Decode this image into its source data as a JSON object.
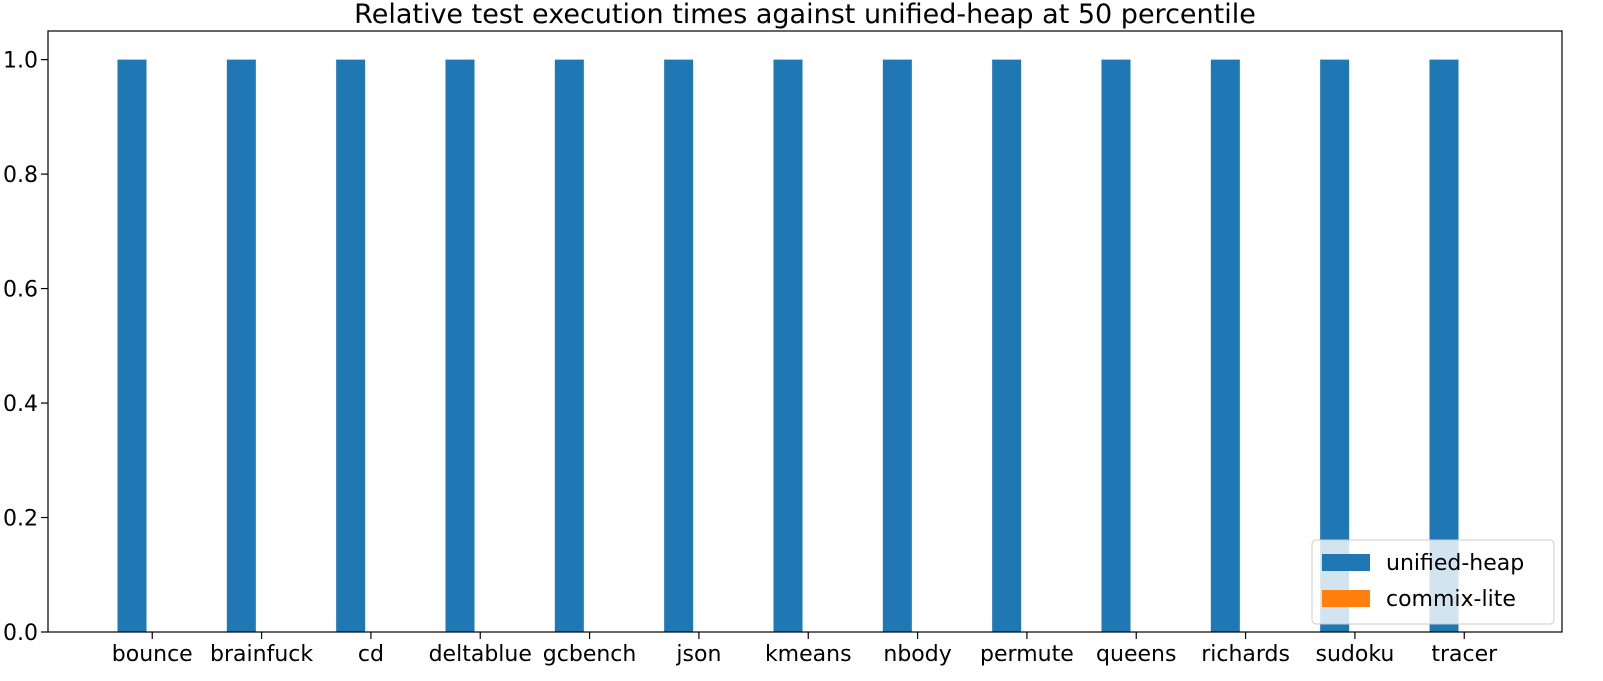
{
  "chart_data": {
    "type": "bar",
    "title": "Relative test execution times against unified-heap at 50 percentile",
    "xlabel": "",
    "ylabel": "",
    "categories": [
      "bounce",
      "brainfuck",
      "cd",
      "deltablue",
      "gcbench",
      "json",
      "kmeans",
      "nbody",
      "permute",
      "queens",
      "richards",
      "sudoku",
      "tracer"
    ],
    "series": [
      {
        "name": "unified-heap",
        "color": "#1f77b4",
        "values": [
          1.0,
          1.0,
          1.0,
          1.0,
          1.0,
          1.0,
          1.0,
          1.0,
          1.0,
          1.0,
          1.0,
          1.0,
          1.0
        ]
      },
      {
        "name": "commix-lite",
        "color": "#ff7f0e",
        "values": [
          0.0,
          0.0,
          0.0,
          0.0,
          0.0,
          0.0,
          0.0,
          0.0,
          0.0,
          0.0,
          0.0,
          0.0,
          0.0
        ]
      }
    ],
    "ylim": [
      0,
      1.05
    ],
    "yticks": [
      "0.0",
      "0.2",
      "0.4",
      "0.6",
      "0.8",
      "1.0"
    ],
    "grid": false,
    "legend_position": "bottom-right"
  }
}
